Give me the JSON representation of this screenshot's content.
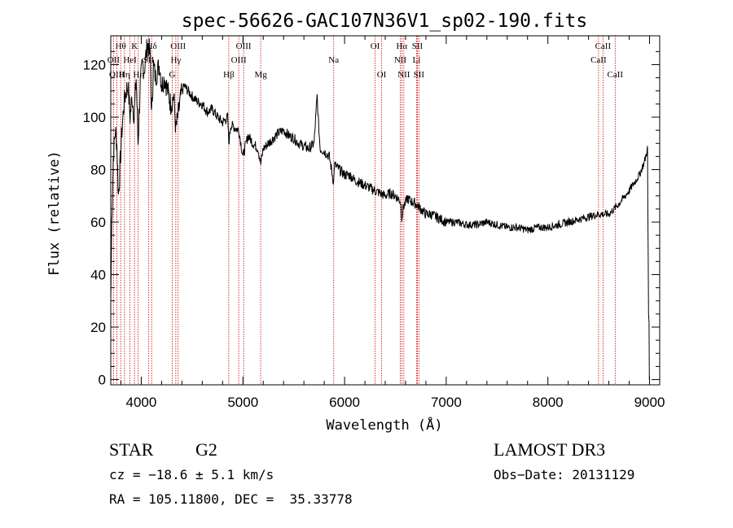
{
  "chart_data": {
    "type": "line",
    "title": "spec-56626-GAC107N36V1_sp02-190.fits",
    "xlabel": "Wavelength (Å)",
    "ylabel": "Flux (relative)",
    "xlim": [
      3700,
      9100
    ],
    "ylim": [
      -2,
      131
    ],
    "xticks": [
      4000,
      5000,
      6000,
      7000,
      8000,
      9000
    ],
    "yticks": [
      0,
      20,
      40,
      60,
      80,
      100,
      120
    ],
    "line_color": "#000000",
    "marker_color": "#cc0000",
    "series": [
      {
        "name": "flux",
        "x": [
          3700,
          3710,
          3725,
          3745,
          3760,
          3775,
          3790,
          3810,
          3830,
          3850,
          3870,
          3890,
          3910,
          3930,
          3950,
          3968,
          3990,
          4010,
          4030,
          4050,
          4070,
          4090,
          4101,
          4120,
          4140,
          4160,
          4180,
          4200,
          4230,
          4260,
          4290,
          4320,
          4340,
          4360,
          4390,
          4420,
          4460,
          4500,
          4550,
          4600,
          4650,
          4700,
          4750,
          4800,
          4850,
          4861,
          4880,
          4920,
          4960,
          5000,
          5050,
          5100,
          5150,
          5175,
          5200,
          5250,
          5300,
          5350,
          5400,
          5450,
          5500,
          5550,
          5600,
          5650,
          5700,
          5730,
          5740,
          5760,
          5800,
          5850,
          5893,
          5900,
          5950,
          6000,
          6050,
          6100,
          6150,
          6200,
          6250,
          6300,
          6350,
          6400,
          6450,
          6500,
          6550,
          6563,
          6580,
          6620,
          6650,
          6700,
          6750,
          6800,
          6850,
          6900,
          6950,
          7000,
          7100,
          7200,
          7300,
          7400,
          7500,
          7600,
          7700,
          7800,
          7900,
          8000,
          8100,
          8200,
          8300,
          8400,
          8500,
          8600,
          8700,
          8800,
          8850,
          8900,
          8950,
          8980,
          8990,
          8995,
          8998
        ],
        "y": [
          30,
          60,
          85,
          95,
          90,
          70,
          80,
          95,
          105,
          110,
          112,
          100,
          108,
          100,
          115,
          90,
          112,
          120,
          118,
          125,
          128,
          122,
          100,
          120,
          115,
          118,
          120,
          112,
          115,
          110,
          105,
          108,
          95,
          100,
          108,
          112,
          110,
          108,
          106,
          105,
          102,
          103,
          100,
          98,
          100,
          90,
          97,
          96,
          95,
          85,
          93,
          90,
          88,
          82,
          88,
          90,
          92,
          94,
          95,
          93,
          92,
          90,
          89,
          88,
          90,
          108,
          100,
          88,
          87,
          85,
          75,
          82,
          80,
          78,
          78,
          76,
          75,
          74,
          73,
          72,
          71,
          70,
          71,
          70,
          68,
          62,
          66,
          69,
          68,
          67,
          65,
          63,
          63,
          62,
          61,
          60,
          60,
          59,
          59,
          60,
          59,
          58,
          58,
          57,
          58,
          58,
          59,
          60,
          61,
          62,
          63,
          63,
          67,
          72,
          75,
          78,
          83,
          88,
          25,
          22,
          0
        ]
      }
    ],
    "lines": [
      {
        "name": "Hθ",
        "x": 3798,
        "row": 1
      },
      {
        "name": "OII",
        "x": 3727,
        "row": 2
      },
      {
        "name": "OIII",
        "x": 3760,
        "row": 3
      },
      {
        "name": "K",
        "x": 3934,
        "row": 1
      },
      {
        "name": "HeI",
        "x": 3889,
        "row": 2
      },
      {
        "name": "Hη",
        "x": 3835,
        "row": 3
      },
      {
        "name": "Hε",
        "x": 3970,
        "row": 3
      },
      {
        "name": "Hδ",
        "x": 4102,
        "row": 1
      },
      {
        "name": "SII",
        "x": 4072,
        "row": 2
      },
      {
        "name": "OIII",
        "x": 4363,
        "row": 1
      },
      {
        "name": "Hγ",
        "x": 4340,
        "row": 2
      },
      {
        "name": "G",
        "x": 4305,
        "row": 3
      },
      {
        "name": "OIII",
        "x": 5007,
        "row": 1
      },
      {
        "name": "OIII",
        "x": 4959,
        "row": 2
      },
      {
        "name": "Hβ",
        "x": 4861,
        "row": 3
      },
      {
        "name": "Mg",
        "x": 5175,
        "row": 3
      },
      {
        "name": "Na",
        "x": 5893,
        "row": 2
      },
      {
        "name": "OI",
        "x": 6300,
        "row": 1
      },
      {
        "name": "OI",
        "x": 6364,
        "row": 3
      },
      {
        "name": "Hα",
        "x": 6563,
        "row": 1
      },
      {
        "name": "SII",
        "x": 6716,
        "row": 1
      },
      {
        "name": "NII",
        "x": 6548,
        "row": 2
      },
      {
        "name": "Li",
        "x": 6708,
        "row": 2
      },
      {
        "name": "NII",
        "x": 6583,
        "row": 3
      },
      {
        "name": "SII",
        "x": 6731,
        "row": 3
      },
      {
        "name": "CaII",
        "x": 8542,
        "row": 1
      },
      {
        "name": "CaII",
        "x": 8498,
        "row": 2
      },
      {
        "name": "CaII",
        "x": 8662,
        "row": 3
      }
    ]
  },
  "info": {
    "object_class": "STAR",
    "subclass": "G2",
    "survey": "LAMOST DR3",
    "redshift": "cz = −18.6 ± 5.1 km/s",
    "obs_date": "Obs−Date: 20131129",
    "coords": "RA = 105.11800, DEC =  35.33778"
  }
}
